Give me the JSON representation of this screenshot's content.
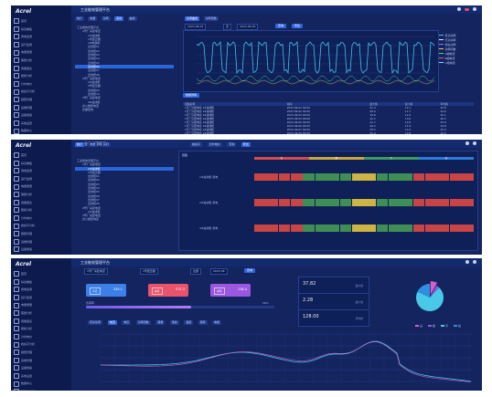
{
  "logo": "Acrel",
  "app_title": "工业能效管理平台",
  "nav": [
    "首页",
    "综合看板",
    "用电监测",
    "运行监测",
    "电能质量",
    "需量分析",
    "用能报表",
    "能耗分析",
    "分时电价",
    "峰谷平分析",
    "报警管理",
    "运维管理",
    "设备档案",
    "系统设置",
    "数据中心",
    "碳排放分析"
  ],
  "screen1": {
    "tabs": [
      "统计",
      "电量",
      "功率",
      "实时",
      "曲线"
    ],
    "view_tabs": [
      "负荷曲线",
      "功率因数"
    ],
    "filters": [
      "2023-06-01",
      "至",
      "2023-06-30",
      "查询",
      "导出"
    ],
    "tree": [
      "工业能效管理平台",
      "1号厂房配电室",
      "1#进线柜",
      "1号变压器",
      "1#电容柜",
      "出线柜01",
      "出线柜02",
      "出线柜03",
      "出线柜04",
      "出线柜05",
      "出线柜06",
      "出线柜07",
      "出线柜08",
      "2号厂房配电室",
      "2#进线柜",
      "2号变压器",
      "出线柜09",
      "出线柜10",
      "3号厂房配电室",
      "3#进线柜",
      "办公楼配电室",
      "食堂配电"
    ],
    "selected_tree_index": 10,
    "table_button": "数据详情",
    "columns": [
      "回路名称",
      "时间",
      "最大值",
      "最小值",
      "平均值"
    ],
    "rows": [
      [
        "1号厂房配电室 1#进线柜",
        "2023-06-01 00:00",
        "41.3",
        "12.1",
        "25.8"
      ],
      [
        "1号厂房配电室 1#进线柜",
        "2023-06-02 00:00",
        "40.9",
        "11.7",
        "24.6"
      ],
      [
        "1号厂房配电室 1#进线柜",
        "2023-06-03 00:00",
        "39.8",
        "12.4",
        "25.1"
      ],
      [
        "1号厂房配电室 1#进线柜",
        "2023-06-04 00:00",
        "42.2",
        "13.0",
        "26.3"
      ],
      [
        "1号厂房配电室 1#进线柜",
        "2023-06-05 00:00",
        "41.7",
        "12.6",
        "25.9"
      ],
      [
        "1号厂房配电室 1#进线柜",
        "2023-06-06 00:00",
        "40.2",
        "11.9",
        "24.8"
      ],
      [
        "1号厂房配电室 1#进线柜",
        "2023-06-07 00:00",
        "39.5",
        "12.2",
        "25.0"
      ],
      [
        "1号厂房配电室 1#进线柜",
        "2023-06-08 00:00",
        "41.0",
        "12.8",
        "25.6"
      ]
    ],
    "legend": [
      "有功功率",
      "无功功率",
      "视在功率",
      "功率因数",
      "A相电流",
      "B相电流",
      "C相电流"
    ],
    "colors": [
      "#3ec3e8",
      "#e8e8e8",
      "#8a7cf2",
      "#f1c84b",
      "#47d18b",
      "#e65a6c",
      "#7fe0ff"
    ]
  },
  "screen2": {
    "tabs": [
      "统计",
      "电量",
      "实时"
    ],
    "view_tabs": [
      "峰谷平",
      "分时电价",
      "查询",
      "导出"
    ],
    "header_label": "回路",
    "bands": [
      "尖",
      "峰",
      "平",
      "谷"
    ],
    "band_colors": [
      "#d84a4a",
      "#c9a83b",
      "#3e9b5c",
      "#2d7bd8"
    ],
    "rows": [
      "1#进线柜 用电",
      "2#进线柜 用电",
      "3#进线柜 用电"
    ],
    "cell_colors": [
      "#c94545",
      "#c94545",
      "#c94545",
      "#c94545",
      "#3f8f55",
      "#3f8f55",
      "#3f8f55",
      "#3f8f55",
      "#cdb443",
      "#cdb443",
      "#3f8f55",
      "#3f8f55",
      "#3f8f55",
      "#c94545",
      "#c94545",
      "#c94545",
      "#c94545",
      "#c94545"
    ],
    "tree": [
      "工业能效管理平台",
      "1号厂房配电室",
      "1#进线柜",
      "1号变压器",
      "出线柜01",
      "出线柜02",
      "出线柜03",
      "出线柜04",
      "出线柜05",
      "出线柜06",
      "出线柜07",
      "出线柜08",
      "2号厂房配电室",
      "2#进线柜",
      "3号厂房配电室",
      "办公楼配电室"
    ],
    "selected_tree_index": 2
  },
  "screen3": {
    "filters": [
      "1号厂房配电室",
      "1号变压器",
      "全部",
      "2023-06",
      "查询"
    ],
    "cards": [
      {
        "label": "今日",
        "value": "325.1",
        "color": "#3c7fe6"
      },
      {
        "label": "本月",
        "value": "572.3",
        "color": "#e9536c"
      },
      {
        "label": "本年",
        "value": "138.4",
        "color": "#9b57e0"
      }
    ],
    "progress_label_left": "负荷率",
    "progress_label_right": "56%",
    "progress_fraction": 0.56,
    "metrics": [
      {
        "value": "37.82",
        "label": "最大值"
      },
      {
        "value": "2.28",
        "label": "最小值"
      },
      {
        "value": "128.00",
        "label": "平均值"
      }
    ],
    "pie_labels": [
      "尖",
      "峰",
      "平",
      "谷"
    ],
    "pie_values": [
      8,
      4,
      70,
      18
    ],
    "pie_colors": [
      "#d85fc9",
      "#8c5ae8",
      "#49c9e8",
      "#2e8fe0"
    ],
    "chart_tabs": [
      "有功功率",
      "电流",
      "电压",
      "功率因数",
      "需量",
      "谐波",
      "温度",
      "频率",
      "电能"
    ],
    "active_chart_tab": 1
  }
}
